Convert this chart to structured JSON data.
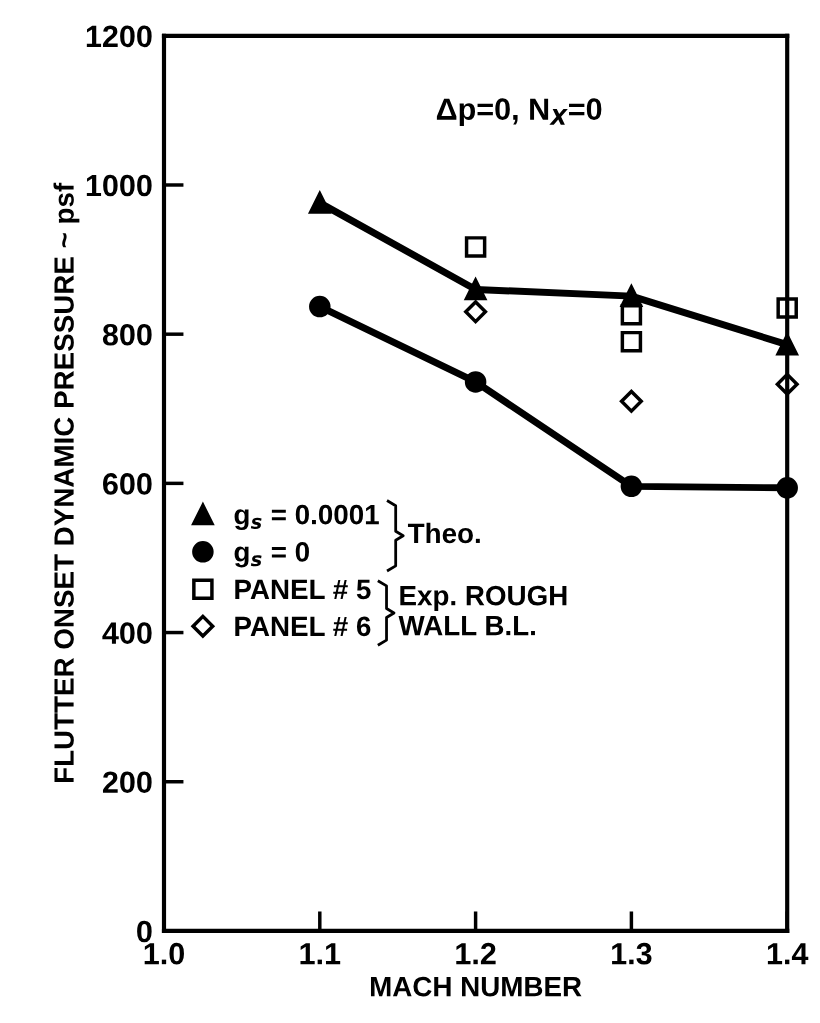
{
  "chart_data": {
    "type": "line",
    "xlabel": "MACH NUMBER",
    "ylabel": "FLUTTER ONSET DYNAMIC PRESSURE ~ psf",
    "xlim": [
      1.0,
      1.4
    ],
    "xticks": [
      {
        "value": 1.0,
        "label": "1.0"
      },
      {
        "value": 1.1,
        "label": "1.1"
      },
      {
        "value": 1.2,
        "label": "1.2"
      },
      {
        "value": 1.3,
        "label": "1.3"
      },
      {
        "value": 1.4,
        "label": "1.4"
      }
    ],
    "ylim": [
      0,
      1200
    ],
    "yticks": [
      0,
      200,
      400,
      600,
      800,
      1000,
      1200
    ],
    "grid": false,
    "legend": "center left",
    "series": [
      {
        "name": "g$_{s}$ = 0.0001",
        "marker": "triangle",
        "color": "#000000",
        "x": [
          1.1,
          1.2,
          1.3,
          1.4
        ],
        "values": [
          976,
          860,
          851,
          786
        ]
      },
      {
        "name": "g$_{s}$ = 0",
        "marker": "circle",
        "color": "#000000",
        "x": [
          1.1,
          1.2,
          1.3,
          1.4
        ],
        "values": [
          837,
          736,
          596,
          594
        ]
      },
      {
        "name": "PANEL # 5",
        "type": "scatter",
        "marker": "square",
        "color": "#000000",
        "x": [
          1.2,
          1.3,
          1.3,
          1.4
        ],
        "values": [
          917,
          826,
          790,
          835
        ]
      },
      {
        "name": "PANEL # 6",
        "type": "scatter",
        "marker": "diamond",
        "color": "#000000",
        "x": [
          1.2,
          1.3,
          1.4
        ],
        "values": [
          830,
          710,
          733
        ]
      }
    ],
    "annotations": [
      "Δp=0, N$_{X}$=0",
      "Theo.",
      "Exp. ROUGH\nWALL B.L."
    ]
  }
}
